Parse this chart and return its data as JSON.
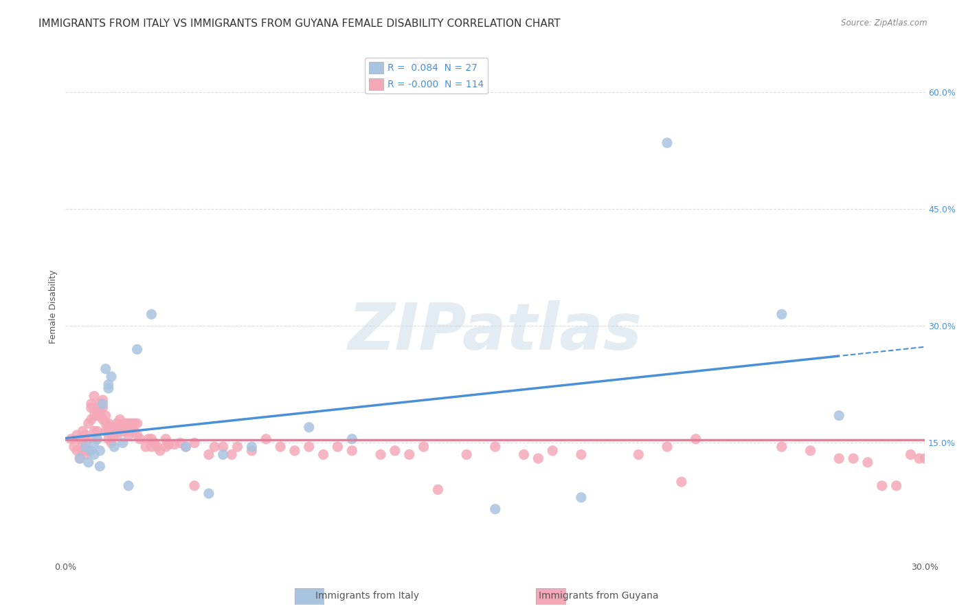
{
  "title": "IMMIGRANTS FROM ITALY VS IMMIGRANTS FROM GUYANA FEMALE DISABILITY CORRELATION CHART",
  "source": "Source: ZipAtlas.com",
  "xlabel": "",
  "ylabel": "Female Disability",
  "xlim": [
    0.0,
    0.3
  ],
  "ylim": [
    0.0,
    0.65
  ],
  "xticks": [
    0.0,
    0.05,
    0.1,
    0.15,
    0.2,
    0.25,
    0.3
  ],
  "xtick_labels": [
    "0.0%",
    "",
    "",
    "",
    "",
    "",
    "30.0%"
  ],
  "ytick_labels_right": [
    "60.0%",
    "45.0%",
    "30.0%",
    "15.0%"
  ],
  "ytick_vals_right": [
    0.6,
    0.45,
    0.3,
    0.15
  ],
  "italy_R": 0.084,
  "italy_N": 27,
  "guyana_R": -0.0,
  "guyana_N": 114,
  "italy_color": "#a8c4e0",
  "guyana_color": "#f4a8b8",
  "italy_line_color": "#4a90d9",
  "guyana_line_color": "#e87a9a",
  "italy_scatter_x": [
    0.005,
    0.007,
    0.008,
    0.009,
    0.01,
    0.01,
    0.011,
    0.012,
    0.012,
    0.013,
    0.014,
    0.015,
    0.015,
    0.016,
    0.017,
    0.02,
    0.022,
    0.025,
    0.03,
    0.042,
    0.05,
    0.055,
    0.065,
    0.085,
    0.1,
    0.15,
    0.18,
    0.21,
    0.25,
    0.27
  ],
  "italy_scatter_y": [
    0.13,
    0.145,
    0.125,
    0.14,
    0.15,
    0.135,
    0.155,
    0.14,
    0.12,
    0.2,
    0.245,
    0.22,
    0.225,
    0.235,
    0.145,
    0.15,
    0.095,
    0.27,
    0.315,
    0.145,
    0.085,
    0.135,
    0.145,
    0.17,
    0.155,
    0.065,
    0.08,
    0.535,
    0.315,
    0.185
  ],
  "guyana_scatter_x": [
    0.002,
    0.003,
    0.004,
    0.004,
    0.005,
    0.005,
    0.006,
    0.006,
    0.006,
    0.007,
    0.007,
    0.007,
    0.008,
    0.008,
    0.008,
    0.009,
    0.009,
    0.009,
    0.01,
    0.01,
    0.01,
    0.01,
    0.011,
    0.011,
    0.011,
    0.012,
    0.012,
    0.012,
    0.013,
    0.013,
    0.013,
    0.014,
    0.014,
    0.014,
    0.015,
    0.015,
    0.015,
    0.016,
    0.016,
    0.016,
    0.017,
    0.017,
    0.018,
    0.018,
    0.019,
    0.019,
    0.02,
    0.02,
    0.021,
    0.021,
    0.022,
    0.022,
    0.023,
    0.023,
    0.024,
    0.024,
    0.025,
    0.025,
    0.026,
    0.028,
    0.029,
    0.03,
    0.03,
    0.031,
    0.032,
    0.033,
    0.035,
    0.035,
    0.036,
    0.038,
    0.04,
    0.042,
    0.045,
    0.045,
    0.05,
    0.052,
    0.055,
    0.058,
    0.06,
    0.065,
    0.07,
    0.075,
    0.08,
    0.085,
    0.09,
    0.095,
    0.1,
    0.11,
    0.115,
    0.12,
    0.125,
    0.13,
    0.14,
    0.15,
    0.16,
    0.165,
    0.17,
    0.18,
    0.2,
    0.21,
    0.215,
    0.22,
    0.25,
    0.26,
    0.27,
    0.275,
    0.28,
    0.285,
    0.29,
    0.295,
    0.298,
    0.3
  ],
  "guyana_scatter_y": [
    0.155,
    0.145,
    0.16,
    0.14,
    0.155,
    0.13,
    0.165,
    0.15,
    0.14,
    0.16,
    0.145,
    0.135,
    0.175,
    0.155,
    0.14,
    0.2,
    0.195,
    0.18,
    0.21,
    0.195,
    0.185,
    0.165,
    0.185,
    0.165,
    0.155,
    0.2,
    0.195,
    0.185,
    0.205,
    0.195,
    0.18,
    0.185,
    0.175,
    0.165,
    0.175,
    0.165,
    0.155,
    0.17,
    0.16,
    0.15,
    0.17,
    0.16,
    0.175,
    0.16,
    0.18,
    0.165,
    0.175,
    0.165,
    0.175,
    0.165,
    0.175,
    0.16,
    0.175,
    0.165,
    0.175,
    0.165,
    0.175,
    0.16,
    0.155,
    0.145,
    0.155,
    0.155,
    0.145,
    0.15,
    0.145,
    0.14,
    0.155,
    0.145,
    0.148,
    0.148,
    0.15,
    0.145,
    0.095,
    0.15,
    0.135,
    0.145,
    0.145,
    0.135,
    0.145,
    0.14,
    0.155,
    0.145,
    0.14,
    0.145,
    0.135,
    0.145,
    0.14,
    0.135,
    0.14,
    0.135,
    0.145,
    0.09,
    0.135,
    0.145,
    0.135,
    0.13,
    0.14,
    0.135,
    0.135,
    0.145,
    0.1,
    0.155,
    0.145,
    0.14,
    0.13,
    0.13,
    0.125,
    0.095,
    0.095,
    0.135,
    0.13,
    0.13
  ],
  "background_color": "#ffffff",
  "grid_color": "#dddddd",
  "title_fontsize": 11,
  "axis_label_fontsize": 9,
  "tick_fontsize": 9,
  "legend_fontsize": 10,
  "watermark_text": "ZIPatlas",
  "watermark_color": "#c8d8e8",
  "watermark_alpha": 0.5
}
